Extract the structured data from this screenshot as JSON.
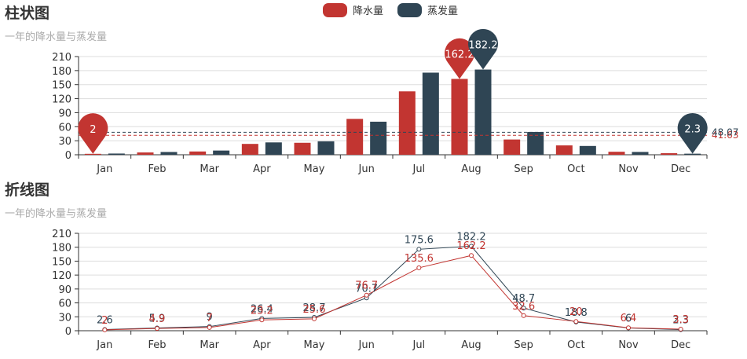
{
  "legend": {
    "items": [
      {
        "label": "降水量",
        "color": "#c23531"
      },
      {
        "label": "蒸发量",
        "color": "#2f4554"
      }
    ]
  },
  "chart_data": [
    {
      "type": "bar",
      "title": "柱状图",
      "subtitle": "一年的降水量与蒸发量",
      "categories": [
        "Jan",
        "Feb",
        "Mar",
        "Apr",
        "May",
        "Jun",
        "Jul",
        "Aug",
        "Sep",
        "Oct",
        "Nov",
        "Dec"
      ],
      "ylim": [
        0,
        210
      ],
      "yticks": [
        0,
        30,
        60,
        90,
        120,
        150,
        180,
        210
      ],
      "grid": true,
      "legend_position": "top-center",
      "series": [
        {
          "name": "降水量",
          "color": "#c23531",
          "values": [
            2,
            4.9,
            7,
            23.2,
            25.6,
            76.7,
            135.6,
            162.2,
            32.6,
            20,
            6.4,
            3.3
          ],
          "mark_points": [
            {
              "type": "min",
              "label": "2",
              "category": "Jan"
            },
            {
              "type": "max",
              "label": "162.2",
              "category": "Aug"
            }
          ],
          "mark_line": {
            "type": "average",
            "label": "41.63"
          }
        },
        {
          "name": "蒸发量",
          "color": "#2f4554",
          "values": [
            2.6,
            5.9,
            9,
            26.4,
            28.7,
            70.7,
            175.6,
            182.2,
            48.7,
            18.8,
            6,
            2.3
          ],
          "mark_points": [
            {
              "type": "min",
              "label": "2.3",
              "category": "Dec"
            },
            {
              "type": "max",
              "label": "182.2",
              "category": "Aug"
            }
          ],
          "mark_line": {
            "type": "average",
            "label": "48.07"
          }
        }
      ]
    },
    {
      "type": "line",
      "title": "折线图",
      "subtitle": "一年的降水量与蒸发量",
      "categories": [
        "Jan",
        "Feb",
        "Mar",
        "Apr",
        "May",
        "Jun",
        "Jul",
        "Aug",
        "Sep",
        "Oct",
        "Nov",
        "Dec"
      ],
      "ylim": [
        0,
        210
      ],
      "yticks": [
        0,
        30,
        60,
        90,
        120,
        150,
        180,
        210
      ],
      "grid": true,
      "series": [
        {
          "name": "降水量",
          "color": "#c23531",
          "values": [
            2,
            4.9,
            7,
            23.2,
            25.6,
            76.7,
            135.6,
            162.2,
            32.6,
            20,
            6.4,
            3.3
          ]
        },
        {
          "name": "蒸发量",
          "color": "#2f4554",
          "values": [
            2.6,
            5.9,
            9,
            26.4,
            28.7,
            70.7,
            175.6,
            182.2,
            48.7,
            18.8,
            6,
            2.3
          ]
        }
      ]
    }
  ]
}
